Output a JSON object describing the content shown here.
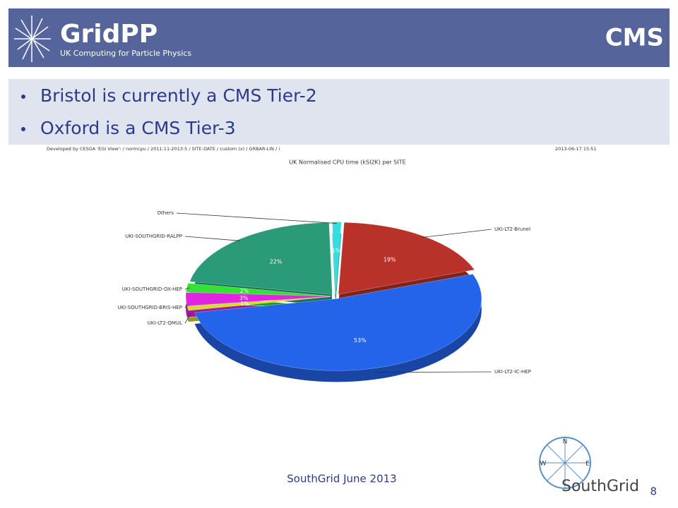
{
  "header": {
    "logo_title": "GridPP",
    "logo_subtitle": "UK Computing for Particle Physics",
    "title": "CMS"
  },
  "bullets": [
    "Bristol is currently a CMS Tier-2",
    "Oxford is a CMS Tier-3"
  ],
  "chart_data": {
    "type": "pie",
    "caption": "Developed by CESGA 'EGI View': / normcpu / 2011:11-2013:5 / SITE-DATE / custom (x) / GRBAR-LIN / i",
    "timestamp": "2013-06-17 15:51",
    "title": "UK Normalised CPU time (kSI2K) per SITE",
    "categories": [
      "UKI-LT2-Brunel",
      "UKI-LT2-IC-HEP",
      "UKI-LT2-QMUL",
      "UKI-SOUTHGRID-BRIS-HEP",
      "UKI-SOUTHGRID-OX-HEP",
      "UKI-SOUTHGRID-RALPP",
      "Others"
    ],
    "values": [
      19,
      53,
      1,
      3,
      2,
      22,
      1
    ],
    "value_labels": [
      "19%",
      "53%",
      "1%",
      "3%",
      "2%",
      "22%",
      "1%"
    ],
    "colors": [
      "#b8322a",
      "#2364ea",
      "#d6dc2c",
      "#e024e0",
      "#34e234",
      "#2a9a78",
      "#2ee0e0"
    ]
  },
  "footer": {
    "text": "SouthGrid June 2013",
    "page": "8",
    "logo_text": "SouthGrid",
    "compass": [
      "N",
      "E",
      "W"
    ]
  }
}
